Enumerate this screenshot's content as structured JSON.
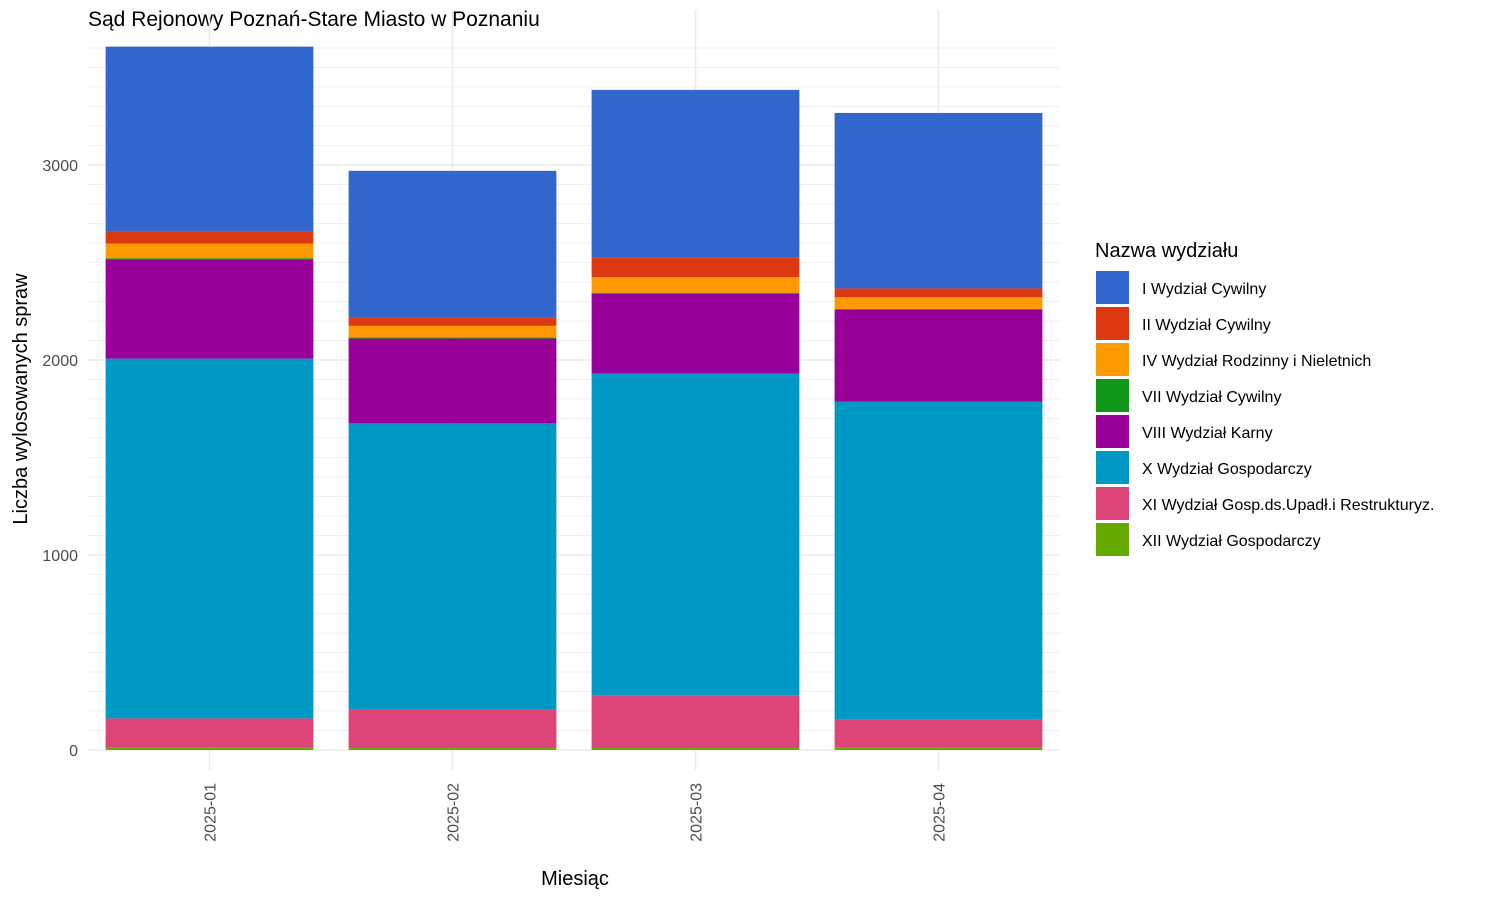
{
  "chart_data": {
    "type": "bar",
    "stacked": true,
    "title": "Sąd Rejonowy Poznań-Stare Miasto w Poznaniu",
    "xlabel": "Miesiąc",
    "ylabel": "Liczba wylosowanych spraw",
    "categories": [
      "2025-01",
      "2025-02",
      "2025-03",
      "2025-04"
    ],
    "ylim": [
      0,
      3600
    ],
    "yticks": [
      0,
      1000,
      2000,
      3000
    ],
    "grid": true,
    "legend": {
      "title": "Nazwa wydziału",
      "position": "right"
    },
    "series": [
      {
        "name": "XII Wydział Gospodarczy",
        "color": "#66aa00",
        "values": [
          12,
          10,
          10,
          12
        ]
      },
      {
        "name": "XI Wydział Gosp.ds.Upadł.i Restrukturyz.",
        "color": "#dd4477",
        "values": [
          150,
          200,
          270,
          145
        ]
      },
      {
        "name": "X Wydział Gospodarczy",
        "color": "#0099c6",
        "values": [
          1845,
          1465,
          1650,
          1630
        ]
      },
      {
        "name": "VIII Wydział Karny",
        "color": "#990099",
        "values": [
          510,
          435,
          410,
          470
        ]
      },
      {
        "name": "VII Wydział Cywilny",
        "color": "#109618",
        "values": [
          5,
          5,
          5,
          5
        ]
      },
      {
        "name": "IV Wydział Rodzinny i Nieletnich",
        "color": "#ff9900",
        "values": [
          75,
          60,
          80,
          60
        ]
      },
      {
        "name": "II Wydział Cywilny",
        "color": "#dc3912",
        "values": [
          60,
          45,
          100,
          45
        ]
      },
      {
        "name": "I Wydział Cywilny",
        "color": "#3366cc",
        "values": [
          950,
          750,
          860,
          900
        ]
      }
    ],
    "legend_order": [
      "I Wydział Cywilny",
      "II Wydział Cywilny",
      "IV Wydział Rodzinny i Nieletnich",
      "VII Wydział Cywilny",
      "VIII Wydział Karny",
      "X Wydział Gospodarczy",
      "XI Wydział Gosp.ds.Upadł.i Restrukturyz.",
      "XII Wydział Gospodarczy"
    ]
  }
}
